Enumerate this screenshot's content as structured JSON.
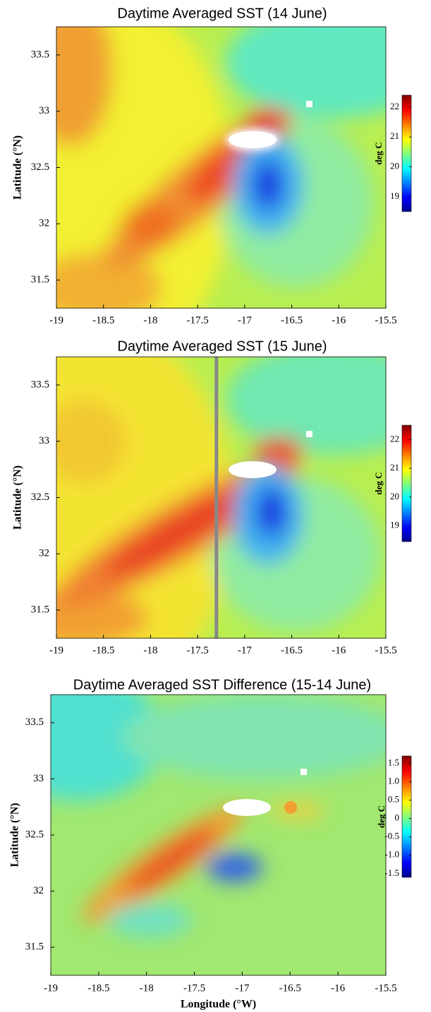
{
  "chart_data": [
    {
      "type": "heatmap",
      "title": "Daytime Averaged SST (14 June)",
      "ylabel": "Latitude (°N)",
      "xlim": [
        -19,
        -15.5
      ],
      "ylim": [
        31.25,
        33.75
      ],
      "xticks": [
        -19,
        -18.5,
        -18,
        -17.5,
        -17,
        -16.5,
        -16,
        -15.5
      ],
      "yticks": [
        31.5,
        32,
        32.5,
        33,
        33.5
      ],
      "colorbar": {
        "label": "deg C",
        "lim": [
          18.5,
          22.4
        ],
        "ticks": [
          19,
          20,
          21,
          22
        ]
      }
    },
    {
      "type": "heatmap",
      "title": "Daytime Averaged SST (15 June)",
      "ylabel": "Latitude (°N)",
      "xlim": [
        -19,
        -15.5
      ],
      "ylim": [
        31.25,
        33.75
      ],
      "xticks": [
        -19,
        -18.5,
        -18,
        -17.5,
        -17,
        -16.5,
        -16,
        -15.5
      ],
      "yticks": [
        31.5,
        32,
        32.5,
        33,
        33.5
      ],
      "marker_x": -17.3,
      "colorbar": {
        "label": "deg C",
        "lim": [
          18.45,
          22.5
        ],
        "ticks": [
          19,
          20,
          21,
          22
        ]
      }
    },
    {
      "type": "heatmap",
      "title": "Daytime Averaged SST Difference (15-14 June)",
      "ylabel": "Latitude (°N)",
      "xlabel": "Longitude (°W)",
      "xlim": [
        -19,
        -15.5
      ],
      "ylim": [
        31.25,
        33.75
      ],
      "xticks": [
        -19,
        -18.5,
        -18,
        -17.5,
        -17,
        -16.5,
        -16,
        -15.5
      ],
      "yticks": [
        31.5,
        32,
        32.5,
        33,
        33.5
      ],
      "colorbar": {
        "label": "deg C",
        "lim": [
          -1.6,
          1.7
        ],
        "ticks": [
          {
            "value": 1.5,
            "label": "1.5"
          },
          {
            "value": 1.0,
            "label": "1.0"
          },
          {
            "value": 0.5,
            "label": "0.5"
          },
          0,
          -0.5,
          {
            "value": -1.0,
            "label": "-1.0"
          },
          -1.5
        ]
      }
    }
  ]
}
